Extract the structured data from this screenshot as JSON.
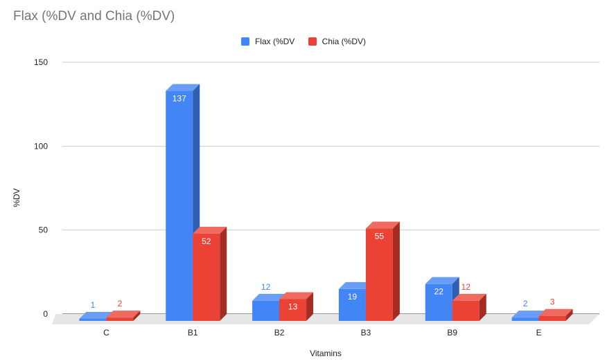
{
  "chart_data": {
    "type": "bar",
    "title": "Flax (%DV and Chia (%DV)",
    "xlabel": "Vitamins",
    "ylabel": "%DV",
    "categories": [
      "C",
      "B1",
      "B2",
      "B3",
      "B9",
      "E"
    ],
    "series": [
      {
        "name": "Flax (%DV",
        "color": "#4285f4",
        "side": "#2f5fb3",
        "top": "#6a9ef6",
        "values": [
          1,
          137,
          12,
          19,
          22,
          2
        ]
      },
      {
        "name": "Chia (%DV)",
        "color": "#ea4335",
        "side": "#a52c22",
        "top": "#ef6b60",
        "values": [
          2,
          52,
          13,
          55,
          12,
          3
        ]
      }
    ],
    "ylim": [
      0,
      150
    ],
    "yticks": [
      "0",
      "50",
      "100",
      "150"
    ],
    "grid": true,
    "legend": "top-center"
  }
}
